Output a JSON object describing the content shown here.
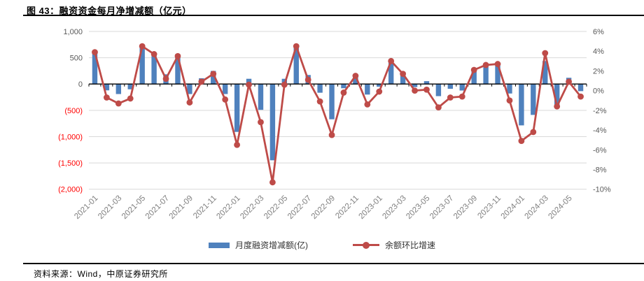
{
  "figure": {
    "title": "图 43：融资资金每月净增减额（亿元）",
    "source": "资料来源：Wind，中原证券研究所"
  },
  "legend": {
    "items": [
      {
        "label": "月度融资增减额(亿)",
        "swatch": "bar-swatch"
      },
      {
        "label": "余额环比增速",
        "swatch": "line-swatch"
      }
    ]
  },
  "colors": {
    "bar": "#4F81BD",
    "line": "#BE4B48",
    "grid": "#D9D9D9",
    "axis": "#000000",
    "axis_text": "#595959",
    "negative_tick_text": "#FF0000",
    "x_tick_text": "#7F7F7F"
  },
  "chart_data": {
    "type": "bar",
    "subtype": "bar+line dual axis",
    "title": "融资资金每月净增减额（亿元）",
    "grid": true,
    "legend_position": "bottom",
    "categories": [
      "2021-01",
      "2021-02",
      "2021-03",
      "2021-04",
      "2021-05",
      "2021-06",
      "2021-07",
      "2021-08",
      "2021-09",
      "2021-10",
      "2021-11",
      "2021-12",
      "2022-01",
      "2022-02",
      "2022-03",
      "2022-04",
      "2022-05",
      "2022-06",
      "2022-07",
      "2022-08",
      "2022-09",
      "2022-10",
      "2022-11",
      "2022-12",
      "2023-01",
      "2023-02",
      "2023-03",
      "2023-04",
      "2023-05",
      "2023-06",
      "2023-07",
      "2023-08",
      "2023-09",
      "2023-10",
      "2023-11",
      "2023-12",
      "2024-01",
      "2024-02",
      "2024-03",
      "2024-04",
      "2024-05",
      "2024-06"
    ],
    "x_labels_shown": [
      "2021-01",
      "2021-03",
      "2021-05",
      "2021-07",
      "2021-09",
      "2021-11",
      "2022-01",
      "2022-03",
      "2022-05",
      "2022-07",
      "2022-09",
      "2022-11",
      "2023-01",
      "2023-03",
      "2023-05",
      "2023-07",
      "2023-09",
      "2023-11",
      "2024-01",
      "2024-03",
      "2024-05"
    ],
    "series": [
      {
        "name": "月度融资增减额(亿)",
        "type": "bar",
        "axis": "left",
        "values": [
          580,
          -120,
          -190,
          -100,
          710,
          560,
          185,
          550,
          -190,
          110,
          250,
          -190,
          -910,
          100,
          -490,
          -1450,
          100,
          695,
          172,
          -165,
          -670,
          -80,
          142,
          -200,
          -50,
          416,
          230,
          -57,
          55,
          -230,
          -90,
          -123,
          284,
          363,
          363,
          -180,
          -786,
          -587,
          438,
          -420,
          119,
          -135
        ]
      },
      {
        "name": "余额环比增速",
        "type": "line",
        "axis": "right",
        "values": [
          3.9,
          -0.7,
          -1.3,
          -0.8,
          4.5,
          3.7,
          1.2,
          3.5,
          -1.2,
          0.9,
          1.7,
          -0.9,
          -5.5,
          0.6,
          -3.2,
          -9.3,
          0.6,
          4.5,
          1.1,
          -1.1,
          -4.5,
          -0.2,
          1.5,
          -1.4,
          -0.1,
          3.0,
          1.7,
          0.0,
          0.1,
          -1.7,
          -0.7,
          -0.6,
          2.1,
          2.6,
          2.7,
          -1.0,
          -5.1,
          -4.2,
          3.8,
          -1.6,
          0.9,
          -0.6
        ]
      }
    ],
    "left_axis": {
      "ylim": [
        -2000,
        1000
      ],
      "tick_values": [
        1000,
        500,
        0,
        -500,
        -1000,
        -1500,
        -2000
      ],
      "tick_labels": [
        "1,000",
        "500",
        "0",
        "(500)",
        "(1,000)",
        "(1,500)",
        "(2,000)"
      ]
    },
    "right_axis": {
      "ylim": [
        -10,
        6
      ],
      "tick_values": [
        6,
        4,
        2,
        0,
        -2,
        -4,
        -6,
        -8,
        -10
      ],
      "tick_labels": [
        "6%",
        "4%",
        "2%",
        "0%",
        "-2%",
        "-4%",
        "-6%",
        "-8%",
        "-10%"
      ]
    }
  }
}
